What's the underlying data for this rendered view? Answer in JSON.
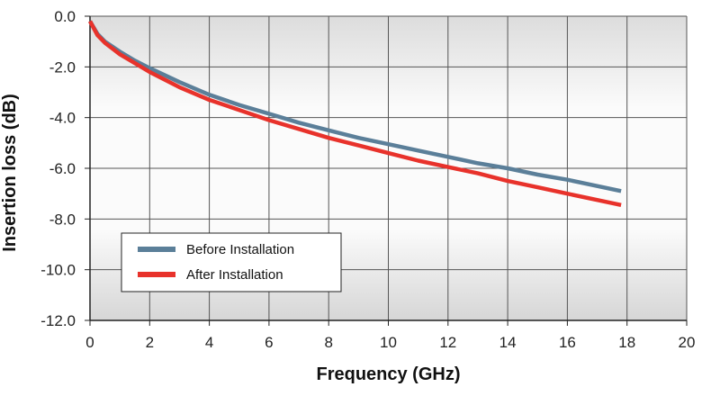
{
  "chart_data": {
    "type": "line",
    "xlabel": "Frequency (GHz)",
    "ylabel": "Insertion loss (dB)",
    "xlim": [
      0,
      20
    ],
    "ylim": [
      -12.0,
      0.0
    ],
    "x_ticks": [
      "0",
      "2",
      "4",
      "6",
      "8",
      "10",
      "12",
      "14",
      "16",
      "18",
      "20"
    ],
    "y_ticks": [
      "0.0",
      "-2.0",
      "-4.0",
      "-6.0",
      "-8.0",
      "-10.0",
      "-12.0"
    ],
    "grid": true,
    "legend_position": "lower-left",
    "series": [
      {
        "name": "Before Installation",
        "color": "#5b7f99",
        "x": [
          0,
          0.25,
          0.5,
          1,
          1.5,
          2,
          3,
          4,
          5,
          6,
          7,
          8,
          9,
          10,
          11,
          12,
          13,
          14,
          15,
          16,
          17,
          17.8
        ],
        "y": [
          -0.2,
          -0.7,
          -1.0,
          -1.4,
          -1.75,
          -2.05,
          -2.6,
          -3.1,
          -3.5,
          -3.85,
          -4.2,
          -4.5,
          -4.8,
          -5.05,
          -5.3,
          -5.55,
          -5.8,
          -6.0,
          -6.25,
          -6.45,
          -6.7,
          -6.9
        ]
      },
      {
        "name": "After Installation",
        "color": "#e8322b",
        "x": [
          0,
          0.25,
          0.5,
          1,
          1.5,
          2,
          3,
          4,
          5,
          6,
          7,
          8,
          9,
          10,
          11,
          12,
          13,
          14,
          15,
          16,
          17,
          17.8
        ],
        "y": [
          -0.2,
          -0.75,
          -1.05,
          -1.5,
          -1.85,
          -2.2,
          -2.8,
          -3.3,
          -3.7,
          -4.1,
          -4.45,
          -4.8,
          -5.1,
          -5.4,
          -5.7,
          -5.95,
          -6.2,
          -6.5,
          -6.75,
          -7.0,
          -7.25,
          -7.45
        ]
      }
    ]
  }
}
